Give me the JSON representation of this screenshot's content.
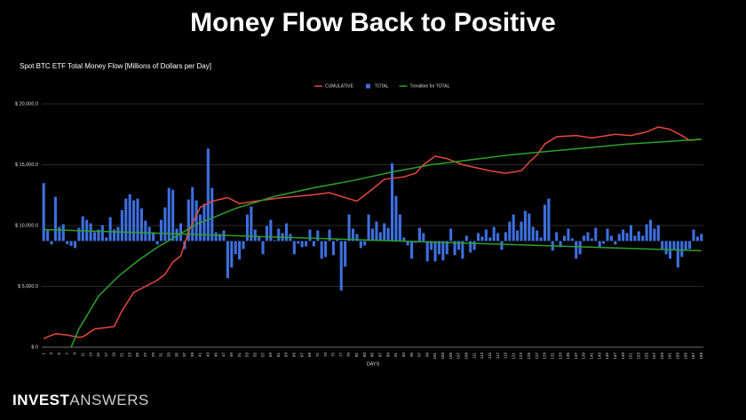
{
  "heading": "Money Flow Back to Positive",
  "footer": {
    "brand_bold": "INVEST",
    "brand_light": "ANSWERS"
  },
  "chart_data": {
    "type": "bar",
    "title": "Spot BTC ETF Total Money Flow [Millions of Dollars per Day]",
    "x_label": "DAYS",
    "categories": [
      "1",
      null,
      "3",
      null,
      "5",
      null,
      "7",
      null,
      "9",
      null,
      "11",
      null,
      "13",
      null,
      "15",
      null,
      "17",
      null,
      "19",
      null,
      "21",
      null,
      "23",
      null,
      "25",
      null,
      "27",
      null,
      "29",
      null,
      "31",
      null,
      "33",
      null,
      "35",
      null,
      "37",
      null,
      "39",
      null,
      "41",
      null,
      "43",
      null,
      "45",
      null,
      "47",
      null,
      "49",
      null,
      "51",
      null,
      "53",
      null,
      "55",
      null,
      "57",
      null,
      "59",
      null,
      "61",
      null,
      "63",
      null,
      "65",
      null,
      "67",
      null,
      "69",
      null,
      "71",
      null,
      "73",
      null,
      "75",
      null,
      "77",
      null,
      "79",
      null,
      "81",
      null,
      "83",
      null,
      "85",
      null,
      "87",
      null,
      "89",
      null,
      "91",
      null,
      "93",
      null,
      "95",
      null,
      "97",
      null,
      "99",
      null,
      "101",
      null,
      "103",
      null,
      "105",
      null,
      "107",
      null,
      "109",
      null,
      "111",
      null,
      "113",
      null,
      "115",
      null,
      "117",
      null,
      "119",
      null,
      "121",
      null,
      "123",
      null,
      "125",
      null,
      "127",
      null,
      "129",
      null,
      "131",
      null,
      "133",
      null,
      "135",
      null,
      "137",
      null,
      "139",
      null,
      "141",
      null,
      "143",
      null,
      "145",
      null,
      "147",
      null,
      "149",
      null,
      "151",
      null,
      "153",
      null,
      "155",
      null,
      "157",
      null,
      "159",
      null,
      "161",
      null,
      "163",
      null,
      "165",
      null,
      "167",
      null,
      "169"
    ],
    "ylim": [
      0,
      20000
    ],
    "yticks": [
      {
        "value": 0,
        "label": "$ 0"
      },
      {
        "value": 5000,
        "label": "$ 5,000.0"
      },
      {
        "value": 10000,
        "label": "$ 10,000.0"
      },
      {
        "value": 15000,
        "label": "$ 15,000.0"
      },
      {
        "value": 20000,
        "label": "$ 20,000.0"
      }
    ],
    "y2lim": [
      -1200,
      1550
    ],
    "grid": true,
    "legend": "top",
    "series": [
      {
        "name": "CUMULATIVE",
        "type": "line",
        "color": "#e8473f",
        "x": [
          1,
          2,
          4,
          7,
          10,
          11,
          14,
          19,
          21,
          24,
          27,
          30,
          32,
          34,
          36,
          38,
          41,
          44,
          48,
          51,
          55,
          62,
          69,
          74,
          78,
          81,
          83,
          85,
          88,
          93,
          96,
          98,
          101,
          104,
          108,
          115,
          119,
          123,
          125,
          127,
          129,
          132,
          137,
          141,
          147,
          151,
          155,
          158,
          161,
          164,
          166,
          169
        ],
        "values": [
          700,
          850,
          1100,
          1000,
          800,
          850,
          1500,
          1700,
          3000,
          4500,
          5000,
          5500,
          6000,
          7000,
          7500,
          9500,
          11500,
          12000,
          12300,
          11800,
          12000,
          12300,
          12500,
          12700,
          12300,
          12000,
          12500,
          13000,
          13800,
          14000,
          14300,
          15000,
          15700,
          15500,
          15000,
          14500,
          14300,
          14500,
          15200,
          15800,
          16700,
          17300,
          17400,
          17200,
          17500,
          17400,
          17700,
          18100,
          17900,
          17400,
          17000,
          17100
        ]
      },
      {
        "name": "TOTAL",
        "type": "bar",
        "color": "#3d6fe0",
        "axis": "y2",
        "values": [
          655,
          125,
          -40,
          500,
          160,
          190,
          -35,
          -55,
          -80,
          150,
          280,
          240,
          200,
          100,
          130,
          180,
          40,
          270,
          130,
          160,
          350,
          480,
          530,
          460,
          480,
          370,
          230,
          160,
          100,
          -40,
          240,
          380,
          600,
          580,
          140,
          200,
          -90,
          470,
          610,
          460,
          300,
          420,
          1045,
          600,
          100,
          80,
          120,
          -420,
          -300,
          -150,
          -210,
          -90,
          300,
          390,
          130,
          50,
          -150,
          170,
          240,
          10,
          140,
          90,
          200,
          80,
          -150,
          -30,
          -70,
          -60,
          130,
          -60,
          120,
          -200,
          -180,
          130,
          -160,
          20,
          -560,
          -290,
          300,
          140,
          80,
          -80,
          -50,
          300,
          140,
          220,
          100,
          200,
          150,
          880,
          510,
          300,
          40,
          -50,
          -200,
          -20,
          150,
          90,
          -230,
          -100,
          -230,
          -150,
          -220,
          -150,
          140,
          -160,
          -100,
          -200,
          60,
          -130,
          -100,
          90,
          50,
          130,
          40,
          160,
          90,
          -100,
          100,
          220,
          300,
          120,
          220,
          340,
          310,
          160,
          120,
          40,
          410,
          480,
          -110,
          100,
          -70,
          60,
          140,
          30,
          -200,
          -150,
          60,
          100,
          30,
          150,
          -70,
          -30,
          140,
          60,
          -40,
          80,
          130,
          90,
          180,
          60,
          110,
          60,
          190,
          240,
          140,
          180,
          -90,
          -150,
          -200,
          -100,
          -300,
          -180,
          -100,
          -90,
          130,
          50,
          80
        ]
      },
      {
        "name": "Trendline for TOTAL",
        "type": "line",
        "color": "#2ca02c",
        "axis": "y2",
        "x": [
          1,
          169
        ],
        "values": [
          130,
          -110
        ]
      },
      {
        "type": "line",
        "color": "#2ca02c",
        "x": [
          8,
          10,
          15,
          20,
          25,
          30,
          40,
          50,
          60,
          70,
          80,
          90,
          100,
          110,
          120,
          130,
          140,
          150,
          160,
          169
        ],
        "values": [
          0,
          1500,
          4200,
          5800,
          7100,
          8200,
          10100,
          11400,
          12400,
          13100,
          13700,
          14400,
          15000,
          15400,
          15800,
          16100,
          16400,
          16700,
          16900,
          17100
        ]
      }
    ]
  }
}
